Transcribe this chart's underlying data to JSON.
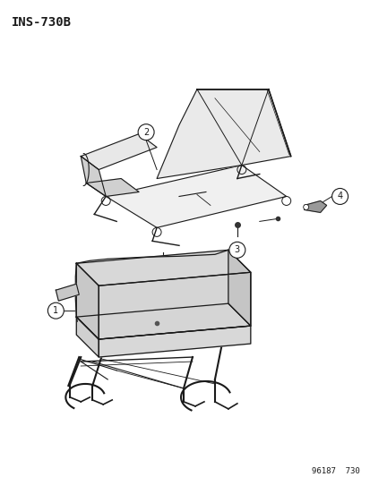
{
  "title": "INS-730B",
  "footer": "96187  730",
  "bg_color": "#ffffff",
  "line_color": "#1a1a1a",
  "fill_light": "#e8e8e8",
  "fill_mid": "#d0d0d0",
  "fill_dark": "#b8b8b8"
}
